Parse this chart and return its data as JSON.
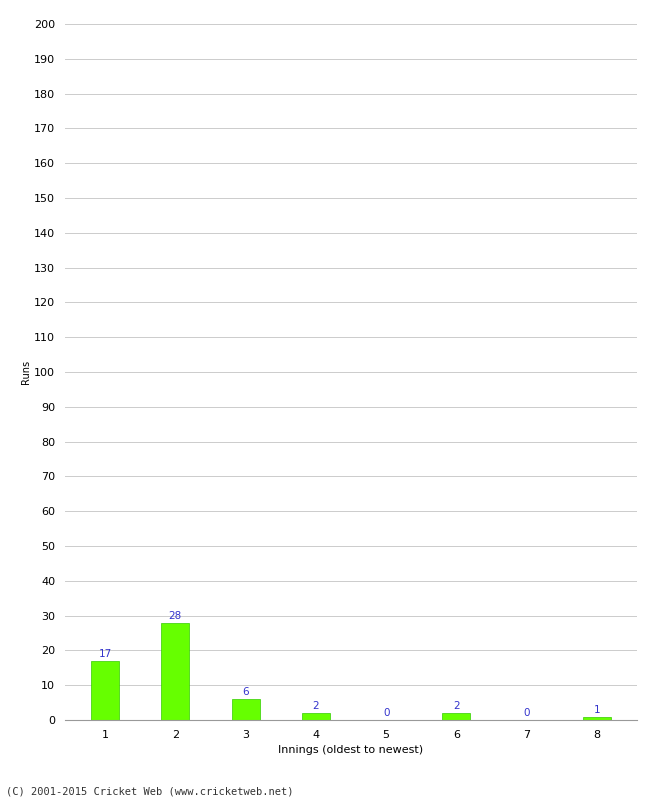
{
  "categories": [
    "1",
    "2",
    "3",
    "4",
    "5",
    "6",
    "7",
    "8"
  ],
  "values": [
    17,
    28,
    6,
    2,
    0,
    2,
    0,
    1
  ],
  "bar_color": "#66ff00",
  "bar_edge_color": "#33cc00",
  "label_color": "#3333cc",
  "xlabel": "Innings (oldest to newest)",
  "ylabel": "Runs",
  "ylim": [
    0,
    200
  ],
  "ytick_step": 10,
  "footer": "(C) 2001-2015 Cricket Web (www.cricketweb.net)",
  "background_color": "#ffffff",
  "grid_color": "#cccccc",
  "label_fontsize": 7.5,
  "axis_tick_fontsize": 8,
  "xlabel_fontsize": 8,
  "ylabel_fontsize": 7,
  "footer_fontsize": 7.5,
  "bar_width": 0.4
}
